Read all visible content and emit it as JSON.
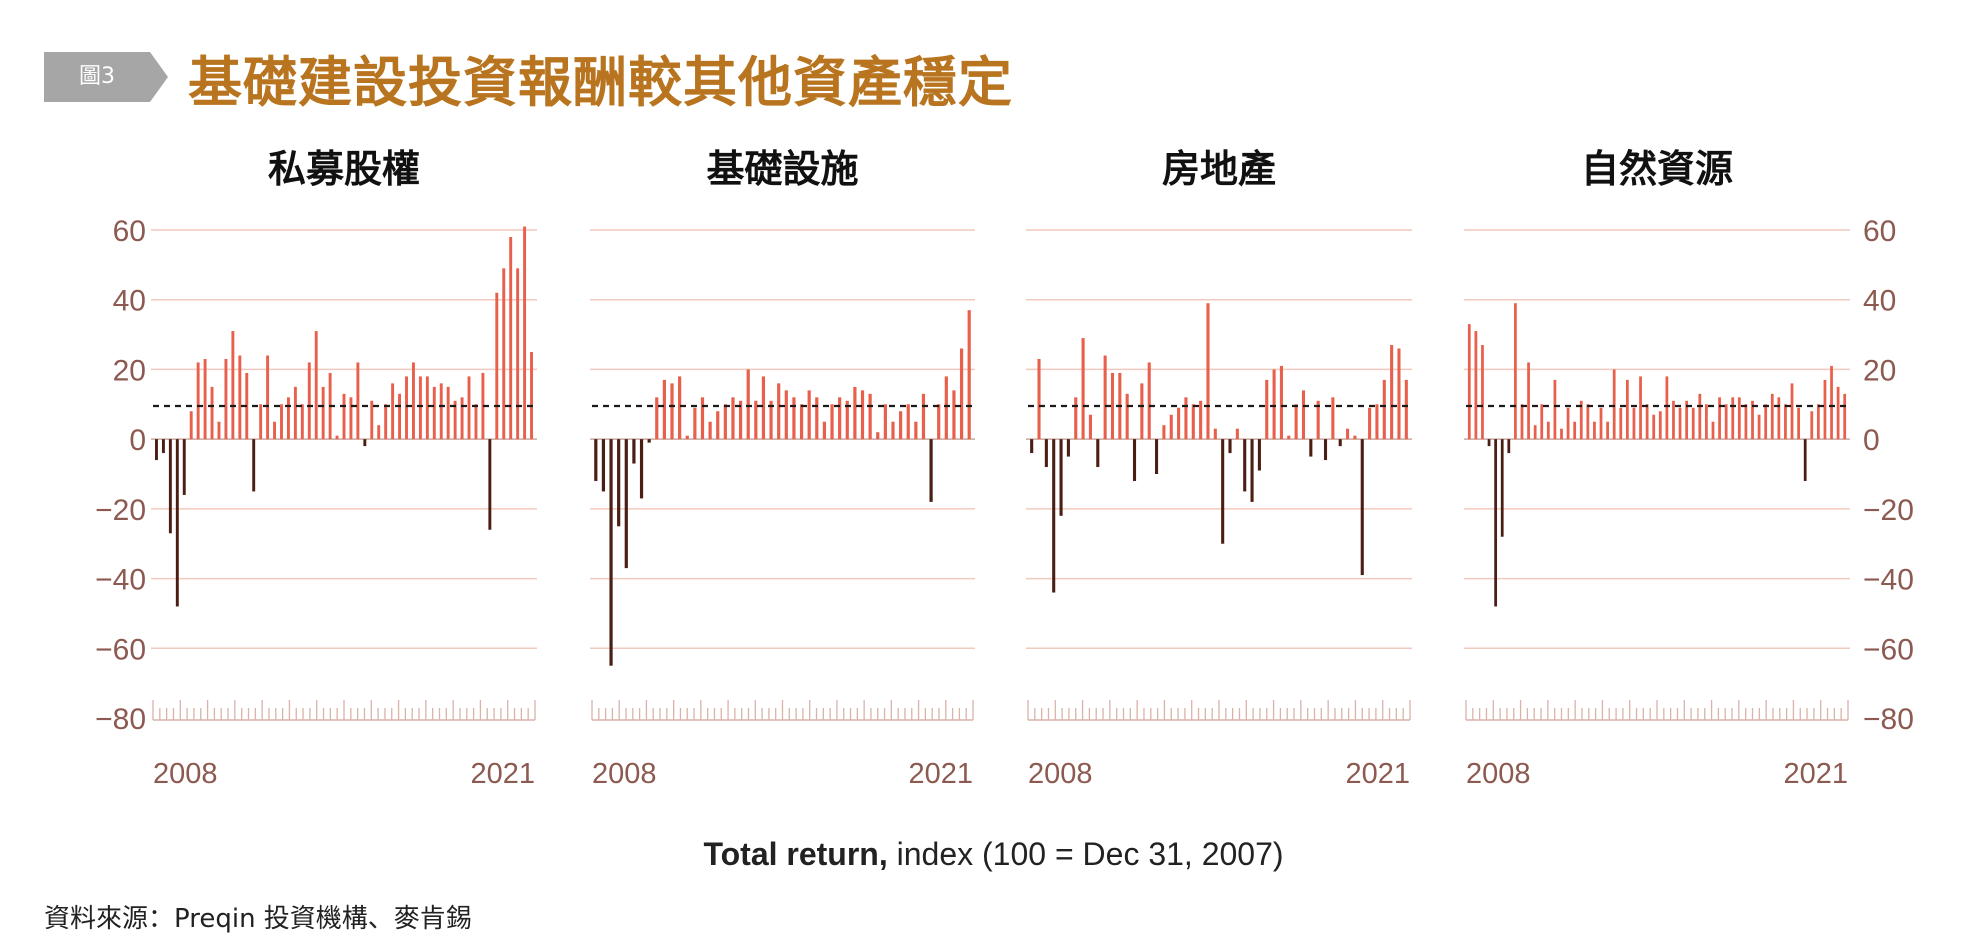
{
  "figure": {
    "tag": "圖3",
    "title": "基礎建設投資報酬較其他資產穩定",
    "caption_bold": "Total return,",
    "caption_rest": " index (100 = Dec 31, 2007)",
    "source": "資料來源：Preqin 投資機構、麥肯錫"
  },
  "colors": {
    "title": "#b8741f",
    "tag_bg": "#a6a6a6",
    "positive_bar": "#e8604c",
    "negative_bar": "#4a1e14",
    "axis_text": "#8c5a50",
    "grid": "#f2c9bf",
    "reference_line": "#1a1a1a"
  },
  "chart_data": [
    {
      "type": "bar",
      "title": "私募股權",
      "x_tick_labels": [
        "2008",
        "2021"
      ],
      "ylim": [
        -80,
        60
      ],
      "y_ticks": [
        60,
        40,
        20,
        0,
        -20,
        -40,
        -60,
        -80
      ],
      "reference_line": 9.5,
      "grid": true,
      "values": [
        -6,
        -4,
        -27,
        -48,
        -16,
        8,
        22,
        23,
        15,
        5,
        23,
        31,
        24,
        19,
        -15,
        10,
        24,
        5,
        10,
        12,
        15,
        10,
        22,
        31,
        15,
        19,
        1,
        13,
        12,
        22,
        -2,
        11,
        4,
        10,
        16,
        13,
        18,
        22,
        18,
        18,
        15,
        16,
        15,
        11,
        12,
        18,
        10,
        19,
        -26,
        42,
        49,
        58,
        49,
        61,
        25
      ]
    },
    {
      "type": "bar",
      "title": "基礎設施",
      "x_tick_labels": [
        "2008",
        "2021"
      ],
      "ylim": [
        -80,
        60
      ],
      "y_ticks": [
        60,
        40,
        20,
        0,
        -20,
        -40,
        -60,
        -80
      ],
      "reference_line": 9.5,
      "grid": true,
      "values": [
        -12,
        -15,
        -65,
        -25,
        -37,
        -7,
        -17,
        -1,
        12,
        17,
        16,
        18,
        1,
        9,
        12,
        5,
        8,
        10,
        12,
        11,
        20,
        11,
        18,
        11,
        16,
        14,
        12,
        10,
        14,
        12,
        5,
        10,
        12,
        11,
        15,
        14,
        13,
        2,
        10,
        5,
        8,
        10,
        5,
        13,
        -18,
        10,
        18,
        14,
        26,
        37
      ]
    },
    {
      "type": "bar",
      "title": "房地產",
      "x_tick_labels": [
        "2008",
        "2021"
      ],
      "ylim": [
        -80,
        60
      ],
      "y_ticks": [
        60,
        40,
        20,
        0,
        -20,
        -40,
        -60,
        -80
      ],
      "reference_line": 9.5,
      "grid": true,
      "values": [
        -4,
        23,
        -8,
        -44,
        -22,
        -5,
        12,
        29,
        7,
        -8,
        24,
        19,
        19,
        13,
        -12,
        16,
        22,
        -10,
        4,
        7,
        9,
        12,
        10,
        11,
        39,
        3,
        -30,
        -4,
        3,
        -15,
        -18,
        -9,
        17,
        20,
        21,
        1,
        10,
        14,
        -5,
        11,
        -6,
        12,
        -2,
        3,
        1,
        -39,
        9,
        10,
        17,
        27,
        26,
        17
      ]
    },
    {
      "type": "bar",
      "title": "自然資源",
      "x_tick_labels": [
        "2008",
        "2021"
      ],
      "ylim": [
        -80,
        60
      ],
      "y_ticks": [
        60,
        40,
        20,
        0,
        -20,
        -40,
        -60,
        -80
      ],
      "reference_line": 9.5,
      "grid": true,
      "values": [
        33,
        31,
        27,
        -2,
        -48,
        -28,
        -4,
        39,
        10,
        22,
        4,
        10,
        5,
        17,
        3,
        9,
        5,
        11,
        10,
        5,
        9,
        5,
        20,
        9,
        17,
        9,
        18,
        10,
        7,
        8,
        18,
        11,
        9,
        11,
        9,
        13,
        10,
        5,
        12,
        10,
        12,
        12,
        10,
        11,
        7,
        10,
        13,
        12,
        10,
        16,
        9,
        -12,
        8,
        10,
        17,
        21,
        15,
        13
      ]
    }
  ]
}
